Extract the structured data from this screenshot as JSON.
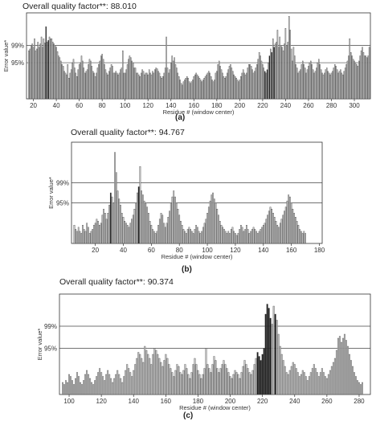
{
  "chart_data": [
    {
      "type": "bar",
      "panel_label": "(a)",
      "title": "Overall quality factor**: 88.010",
      "xlabel": "Residue # (window center)",
      "ylabel": "Error value*",
      "thresholds": [
        {
          "label": "99%"
        },
        {
          "label": "95%"
        }
      ],
      "xlim": [
        14,
        314
      ],
      "xticks": [
        20,
        40,
        60,
        80,
        100,
        120,
        140,
        160,
        180,
        200,
        220,
        240,
        260,
        280,
        300
      ],
      "x_start": 16,
      "x_step": 1,
      "values": [
        0.56,
        0.58,
        0.62,
        0.64,
        0.6,
        0.7,
        0.56,
        0.58,
        0.66,
        0.6,
        0.64,
        0.72,
        0.6,
        0.7,
        0.65,
        0.84,
        0.66,
        0.68,
        0.72,
        0.7,
        0.7,
        0.66,
        0.64,
        0.62,
        0.6,
        0.55,
        0.5,
        0.48,
        0.44,
        0.4,
        0.38,
        0.32,
        0.3,
        0.28,
        0.4,
        0.24,
        0.3,
        0.34,
        0.42,
        0.46,
        0.36,
        0.3,
        0.26,
        0.34,
        0.4,
        0.42,
        0.5,
        0.44,
        0.36,
        0.3,
        0.32,
        0.34,
        0.4,
        0.46,
        0.44,
        0.38,
        0.32,
        0.3,
        0.26,
        0.3,
        0.36,
        0.4,
        0.44,
        0.5,
        0.52,
        0.46,
        0.4,
        0.34,
        0.3,
        0.28,
        0.32,
        0.36,
        0.4,
        0.38,
        0.3,
        0.3,
        0.32,
        0.3,
        0.28,
        0.3,
        0.34,
        0.36,
        0.56,
        0.3,
        0.3,
        0.34,
        0.4,
        0.46,
        0.5,
        0.48,
        0.44,
        0.42,
        0.36,
        0.36,
        0.3,
        0.3,
        0.28,
        0.26,
        0.3,
        0.34,
        0.32,
        0.28,
        0.3,
        0.3,
        0.28,
        0.34,
        0.3,
        0.28,
        0.32,
        0.3,
        0.34,
        0.36,
        0.35,
        0.32,
        0.3,
        0.26,
        0.24,
        0.26,
        0.3,
        0.36,
        0.72,
        0.36,
        0.3,
        0.34,
        0.42,
        0.5,
        0.44,
        0.48,
        0.4,
        0.36,
        0.3,
        0.26,
        0.22,
        0.18,
        0.16,
        0.2,
        0.22,
        0.24,
        0.26,
        0.24,
        0.2,
        0.18,
        0.2,
        0.22,
        0.26,
        0.28,
        0.3,
        0.28,
        0.26,
        0.24,
        0.22,
        0.2,
        0.22,
        0.24,
        0.26,
        0.28,
        0.3,
        0.32,
        0.3,
        0.26,
        0.22,
        0.2,
        0.22,
        0.3,
        0.32,
        0.4,
        0.44,
        0.38,
        0.34,
        0.3,
        0.26,
        0.24,
        0.26,
        0.3,
        0.34,
        0.38,
        0.4,
        0.36,
        0.32,
        0.28,
        0.26,
        0.24,
        0.22,
        0.2,
        0.22,
        0.26,
        0.3,
        0.34,
        0.3,
        0.28,
        0.3,
        0.36,
        0.4,
        0.4,
        0.38,
        0.34,
        0.3,
        0.32,
        0.36,
        0.4,
        0.46,
        0.54,
        0.5,
        0.44,
        0.4,
        0.36,
        0.32,
        0.3,
        0.34,
        0.42,
        0.5,
        0.58,
        0.54,
        0.7,
        0.6,
        0.64,
        0.66,
        0.8,
        0.6,
        0.72,
        0.62,
        0.6,
        0.56,
        0.64,
        0.82,
        0.62,
        0.66,
        0.96,
        0.8,
        0.58,
        0.44,
        0.6,
        0.5,
        0.4,
        0.36,
        0.3,
        0.32,
        0.34,
        0.4,
        0.44,
        0.4,
        0.36,
        0.3,
        0.34,
        0.38,
        0.42,
        0.44,
        0.4,
        0.34,
        0.3,
        0.32,
        0.36,
        0.42,
        0.46,
        0.4,
        0.34,
        0.3,
        0.28,
        0.3,
        0.34,
        0.36,
        0.32,
        0.3,
        0.28,
        0.3,
        0.32,
        0.36,
        0.4,
        0.38,
        0.34,
        0.3,
        0.32,
        0.34,
        0.3,
        0.28,
        0.32,
        0.36,
        0.4,
        0.44,
        0.5,
        0.7,
        0.54,
        0.5,
        0.46,
        0.44,
        0.42,
        0.4,
        0.38,
        0.44,
        0.5,
        0.56,
        0.6,
        0.54,
        0.5,
        0.5,
        0.48,
        0.5,
        0.6
      ],
      "highlight_x": [
        31,
        33,
        222,
        224,
        226,
        228,
        230
      ]
    },
    {
      "type": "bar",
      "panel_label": "(b)",
      "title": "Overall quality factor**: 94.767",
      "xlabel": "Residue # (window center)",
      "ylabel": "Error value*",
      "thresholds": [
        {
          "label": "99%"
        },
        {
          "label": "95%"
        }
      ],
      "xlim": [
        3,
        182
      ],
      "xticks": [
        20,
        40,
        60,
        80,
        100,
        120,
        140,
        160,
        180
      ],
      "x_start": 5,
      "x_step": 1,
      "values": [
        0.18,
        0.14,
        0.12,
        0.16,
        0.12,
        0.1,
        0.18,
        0.14,
        0.12,
        0.2,
        0.16,
        0.1,
        0.12,
        0.14,
        0.18,
        0.2,
        0.24,
        0.22,
        0.18,
        0.2,
        0.28,
        0.34,
        0.3,
        0.24,
        0.3,
        0.38,
        0.5,
        0.46,
        0.4,
        0.9,
        0.7,
        0.52,
        0.44,
        0.38,
        0.3,
        0.26,
        0.22,
        0.2,
        0.18,
        0.16,
        0.2,
        0.24,
        0.28,
        0.34,
        0.4,
        0.5,
        0.56,
        0.76,
        0.52,
        0.48,
        0.42,
        0.4,
        0.36,
        0.3,
        0.22,
        0.18,
        0.14,
        0.12,
        0.1,
        0.12,
        0.18,
        0.24,
        0.3,
        0.28,
        0.2,
        0.16,
        0.2,
        0.26,
        0.32,
        0.4,
        0.46,
        0.52,
        0.46,
        0.4,
        0.34,
        0.28,
        0.22,
        0.18,
        0.14,
        0.12,
        0.1,
        0.14,
        0.16,
        0.14,
        0.12,
        0.1,
        0.14,
        0.18,
        0.16,
        0.12,
        0.1,
        0.12,
        0.16,
        0.2,
        0.24,
        0.3,
        0.36,
        0.42,
        0.48,
        0.5,
        0.44,
        0.4,
        0.34,
        0.28,
        0.22,
        0.18,
        0.16,
        0.14,
        0.12,
        0.1,
        0.12,
        0.1,
        0.14,
        0.16,
        0.12,
        0.1,
        0.08,
        0.1,
        0.14,
        0.18,
        0.16,
        0.12,
        0.14,
        0.18,
        0.14,
        0.1,
        0.12,
        0.14,
        0.16,
        0.14,
        0.12,
        0.1,
        0.12,
        0.14,
        0.16,
        0.18,
        0.2,
        0.24,
        0.28,
        0.32,
        0.36,
        0.34,
        0.3,
        0.26,
        0.22,
        0.18,
        0.16,
        0.2,
        0.24,
        0.28,
        0.32,
        0.36,
        0.42,
        0.48,
        0.46,
        0.4,
        0.34,
        0.3,
        0.26,
        0.22,
        0.18,
        0.14,
        0.12,
        0.1,
        0.12,
        0.1
      ],
      "highlight_x": [
        31,
        51
      ]
    },
    {
      "type": "bar",
      "panel_label": "(c)",
      "title": "Overall quality factor**: 90.374",
      "xlabel": "Residue # (window center)",
      "ylabel": "Error value*",
      "thresholds": [
        {
          "label": "99%"
        },
        {
          "label": "95%"
        }
      ],
      "xlim": [
        94,
        287
      ],
      "xticks": [
        100,
        120,
        140,
        160,
        180,
        200,
        220,
        240,
        260,
        280
      ],
      "x_start": 96,
      "x_step": 1,
      "values": [
        0.12,
        0.1,
        0.14,
        0.12,
        0.2,
        0.18,
        0.14,
        0.1,
        0.16,
        0.22,
        0.18,
        0.12,
        0.1,
        0.14,
        0.2,
        0.24,
        0.2,
        0.16,
        0.12,
        0.1,
        0.14,
        0.18,
        0.22,
        0.26,
        0.22,
        0.18,
        0.14,
        0.2,
        0.24,
        0.2,
        0.16,
        0.12,
        0.16,
        0.2,
        0.24,
        0.2,
        0.16,
        0.12,
        0.18,
        0.24,
        0.3,
        0.26,
        0.22,
        0.18,
        0.24,
        0.3,
        0.36,
        0.42,
        0.4,
        0.36,
        0.32,
        0.48,
        0.44,
        0.4,
        0.36,
        0.3,
        0.4,
        0.46,
        0.44,
        0.4,
        0.36,
        0.32,
        0.28,
        0.34,
        0.4,
        0.36,
        0.3,
        0.26,
        0.22,
        0.18,
        0.24,
        0.3,
        0.28,
        0.22,
        0.2,
        0.24,
        0.3,
        0.26,
        0.2,
        0.16,
        0.22,
        0.3,
        0.36,
        0.3,
        0.24,
        0.2,
        0.16,
        0.2,
        0.26,
        0.46,
        0.3,
        0.26,
        0.22,
        0.3,
        0.38,
        0.34,
        0.26,
        0.22,
        0.26,
        0.3,
        0.34,
        0.3,
        0.26,
        0.22,
        0.18,
        0.16,
        0.2,
        0.24,
        0.22,
        0.2,
        0.16,
        0.22,
        0.28,
        0.34,
        0.3,
        0.26,
        0.22,
        0.2,
        0.24,
        0.3,
        0.36,
        0.42,
        0.38,
        0.34,
        0.4,
        0.46,
        0.8,
        0.9,
        0.86,
        0.76,
        0.7,
        0.88,
        0.8,
        0.74,
        0.6,
        0.48,
        0.4,
        0.34,
        0.28,
        0.22,
        0.2,
        0.24,
        0.28,
        0.32,
        0.3,
        0.26,
        0.22,
        0.18,
        0.2,
        0.24,
        0.22,
        0.18,
        0.14,
        0.18,
        0.22,
        0.26,
        0.3,
        0.26,
        0.22,
        0.18,
        0.22,
        0.26,
        0.22,
        0.18,
        0.16,
        0.2,
        0.24,
        0.28,
        0.32,
        0.36,
        0.44,
        0.56,
        0.58,
        0.52,
        0.56,
        0.6,
        0.54,
        0.48,
        0.4,
        0.34,
        0.28,
        0.22,
        0.18,
        0.14,
        0.12,
        0.1,
        0.12
      ],
      "highlight_x": [
        217,
        218,
        219,
        220,
        221,
        222,
        223,
        224,
        225,
        228
      ]
    }
  ]
}
